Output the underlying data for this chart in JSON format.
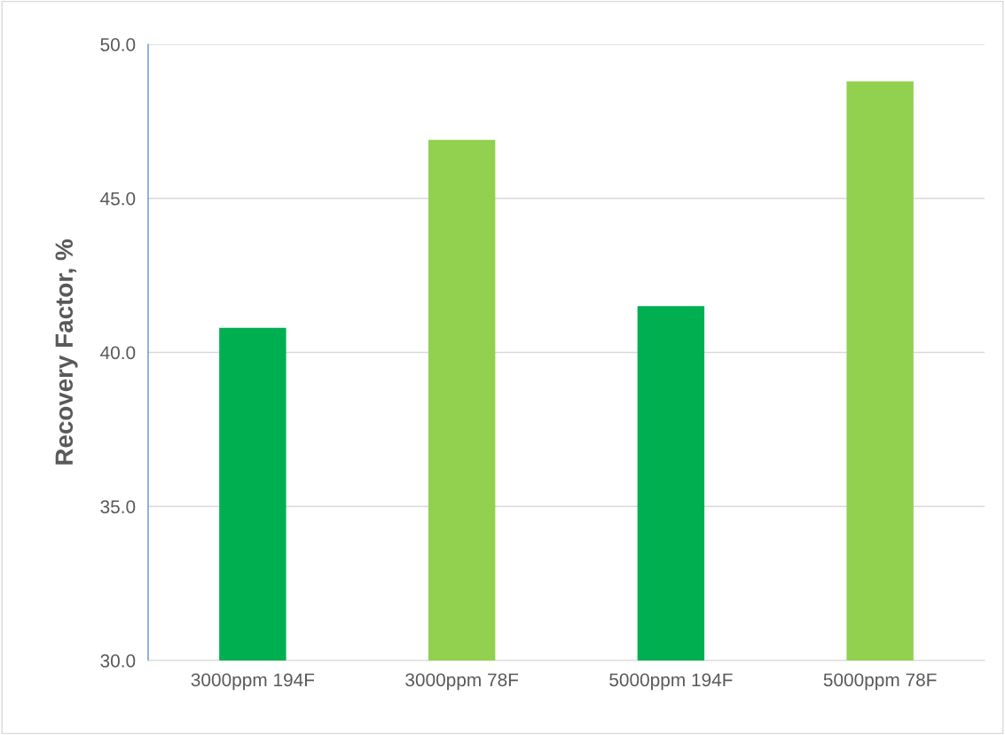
{
  "chart_data": {
    "type": "bar",
    "ylabel": "Recovery Factor, %",
    "categories": [
      "3000ppm 194F",
      "3000ppm 78F",
      "5000ppm 194F",
      "5000ppm 78F"
    ],
    "values": [
      40.8,
      46.9,
      41.5,
      48.8
    ],
    "colors": [
      "#00b050",
      "#92d050",
      "#00b050",
      "#92d050"
    ],
    "ylim": [
      30,
      50
    ],
    "yticks": [
      {
        "value": 30,
        "label": "30.0"
      },
      {
        "value": 35,
        "label": "35.0"
      },
      {
        "value": 40,
        "label": "40.0"
      },
      {
        "value": 45,
        "label": "45.0"
      },
      {
        "value": 50,
        "label": "50.0"
      }
    ],
    "grid": "y",
    "legend": false
  }
}
